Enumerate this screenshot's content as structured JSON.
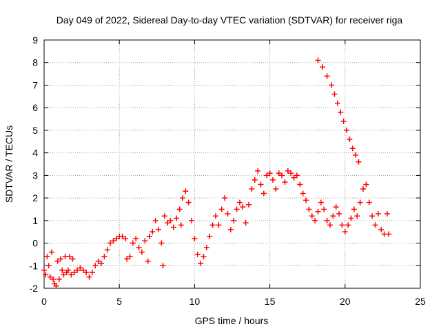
{
  "chart_data": {
    "type": "scatter",
    "title": "Day 049 of 2022, Sidereal Day-to-day VTEC variation (SDTVAR) for receiver riga",
    "xlabel": "GPS time / hours",
    "ylabel": "SDTVAR / TECUs",
    "xlim": [
      0,
      25
    ],
    "ylim": [
      -2,
      9
    ],
    "xticks": [
      0,
      5,
      10,
      15,
      20,
      25
    ],
    "yticks": [
      -2,
      -1,
      0,
      1,
      2,
      3,
      4,
      5,
      6,
      7,
      8,
      9
    ],
    "grid": true,
    "marker": "+",
    "series": [
      {
        "name": "SDTVAR riga",
        "color": "#ff0000",
        "points": [
          [
            0.0,
            -1.2
          ],
          [
            0.1,
            -1.4
          ],
          [
            0.2,
            -0.6
          ],
          [
            0.3,
            -1.0
          ],
          [
            0.4,
            -1.5
          ],
          [
            0.5,
            -0.4
          ],
          [
            0.6,
            -1.6
          ],
          [
            0.7,
            -1.8
          ],
          [
            0.8,
            -1.9
          ],
          [
            0.9,
            -0.8
          ],
          [
            1.0,
            -1.6
          ],
          [
            1.1,
            -0.7
          ],
          [
            1.2,
            -1.2
          ],
          [
            1.3,
            -1.4
          ],
          [
            1.4,
            -0.6
          ],
          [
            1.5,
            -1.3
          ],
          [
            1.6,
            -1.2
          ],
          [
            1.7,
            -0.6
          ],
          [
            1.8,
            -1.4
          ],
          [
            1.9,
            -0.7
          ],
          [
            2.0,
            -1.3
          ],
          [
            2.2,
            -1.2
          ],
          [
            2.4,
            -1.1
          ],
          [
            2.6,
            -1.2
          ],
          [
            2.8,
            -1.3
          ],
          [
            3.0,
            -1.5
          ],
          [
            3.2,
            -1.3
          ],
          [
            3.4,
            -1.0
          ],
          [
            3.6,
            -0.8
          ],
          [
            3.8,
            -0.9
          ],
          [
            4.0,
            -0.6
          ],
          [
            4.2,
            -0.3
          ],
          [
            4.4,
            0.0
          ],
          [
            4.6,
            0.1
          ],
          [
            4.8,
            0.2
          ],
          [
            5.0,
            0.3
          ],
          [
            5.2,
            0.3
          ],
          [
            5.4,
            0.2
          ],
          [
            5.5,
            -0.7
          ],
          [
            5.7,
            -0.6
          ],
          [
            5.9,
            0.0
          ],
          [
            6.1,
            0.2
          ],
          [
            6.3,
            -0.2
          ],
          [
            6.5,
            -0.4
          ],
          [
            6.7,
            0.1
          ],
          [
            6.9,
            -0.8
          ],
          [
            7.0,
            0.3
          ],
          [
            7.2,
            0.5
          ],
          [
            7.4,
            1.0
          ],
          [
            7.6,
            0.6
          ],
          [
            7.8,
            0.0
          ],
          [
            7.9,
            -1.0
          ],
          [
            8.0,
            1.2
          ],
          [
            8.2,
            0.9
          ],
          [
            8.4,
            1.0
          ],
          [
            8.6,
            0.7
          ],
          [
            8.8,
            1.1
          ],
          [
            9.0,
            1.5
          ],
          [
            9.1,
            0.8
          ],
          [
            9.2,
            2.0
          ],
          [
            9.4,
            2.3
          ],
          [
            9.6,
            1.8
          ],
          [
            9.8,
            1.0
          ],
          [
            10.0,
            0.2
          ],
          [
            10.2,
            -0.5
          ],
          [
            10.4,
            -0.9
          ],
          [
            10.6,
            -0.6
          ],
          [
            10.8,
            -0.2
          ],
          [
            11.0,
            0.3
          ],
          [
            11.2,
            0.8
          ],
          [
            11.4,
            1.2
          ],
          [
            11.6,
            0.8
          ],
          [
            11.8,
            1.5
          ],
          [
            12.0,
            2.0
          ],
          [
            12.2,
            1.3
          ],
          [
            12.4,
            0.6
          ],
          [
            12.6,
            1.0
          ],
          [
            12.8,
            1.5
          ],
          [
            13.0,
            1.8
          ],
          [
            13.2,
            1.6
          ],
          [
            13.4,
            0.9
          ],
          [
            13.6,
            1.7
          ],
          [
            13.8,
            2.4
          ],
          [
            14.0,
            2.8
          ],
          [
            14.2,
            3.2
          ],
          [
            14.4,
            2.6
          ],
          [
            14.6,
            2.2
          ],
          [
            14.8,
            3.0
          ],
          [
            15.0,
            3.1
          ],
          [
            15.2,
            2.8
          ],
          [
            15.4,
            2.4
          ],
          [
            15.6,
            3.1
          ],
          [
            15.8,
            3.0
          ],
          [
            16.0,
            2.7
          ],
          [
            16.2,
            3.2
          ],
          [
            16.4,
            3.1
          ],
          [
            16.6,
            2.9
          ],
          [
            16.8,
            3.0
          ],
          [
            17.0,
            2.6
          ],
          [
            17.2,
            2.2
          ],
          [
            17.4,
            1.9
          ],
          [
            17.6,
            1.5
          ],
          [
            17.8,
            1.2
          ],
          [
            18.0,
            1.0
          ],
          [
            18.2,
            1.4
          ],
          [
            18.4,
            1.8
          ],
          [
            18.6,
            1.5
          ],
          [
            18.8,
            1.0
          ],
          [
            19.0,
            0.8
          ],
          [
            19.2,
            1.2
          ],
          [
            19.4,
            1.6
          ],
          [
            19.6,
            1.3
          ],
          [
            19.8,
            0.8
          ],
          [
            20.0,
            0.5
          ],
          [
            20.2,
            0.8
          ],
          [
            20.4,
            1.1
          ],
          [
            20.6,
            1.5
          ],
          [
            20.8,
            1.2
          ],
          [
            21.0,
            1.8
          ],
          [
            21.2,
            2.4
          ],
          [
            21.4,
            2.6
          ],
          [
            21.6,
            1.8
          ],
          [
            21.8,
            1.2
          ],
          [
            22.0,
            0.8
          ],
          [
            22.2,
            1.3
          ],
          [
            22.4,
            0.6
          ],
          [
            22.6,
            0.4
          ],
          [
            22.8,
            1.3
          ],
          [
            22.9,
            0.4
          ],
          [
            18.2,
            8.1
          ],
          [
            18.5,
            7.8
          ],
          [
            18.8,
            7.4
          ],
          [
            19.1,
            7.0
          ],
          [
            19.3,
            6.6
          ],
          [
            19.5,
            6.2
          ],
          [
            19.7,
            5.8
          ],
          [
            19.9,
            5.4
          ],
          [
            20.1,
            5.0
          ],
          [
            20.3,
            4.6
          ],
          [
            20.5,
            4.2
          ],
          [
            20.7,
            3.9
          ],
          [
            20.9,
            3.6
          ]
        ]
      }
    ]
  }
}
